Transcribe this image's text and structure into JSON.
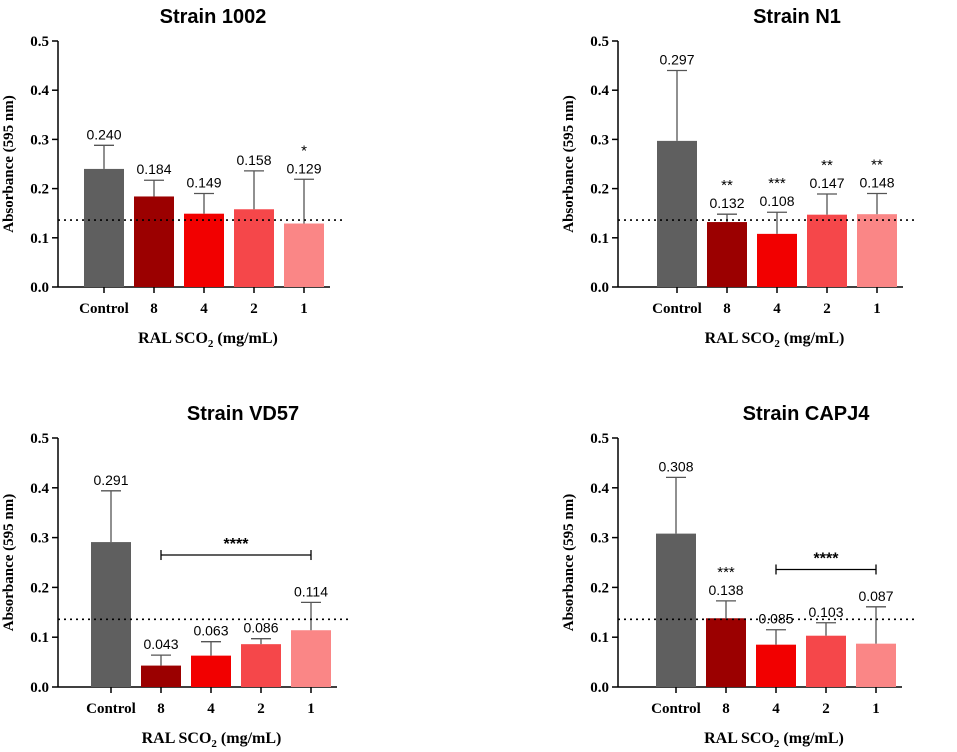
{
  "chart_data": [
    {
      "type": "bar",
      "title": "Strain 1002",
      "categories": [
        "Control",
        "8",
        "4",
        "2",
        "1"
      ],
      "values": [
        0.24,
        0.184,
        0.149,
        0.158,
        0.129
      ],
      "value_labels": [
        "0.240",
        "0.184",
        "0.149",
        "0.158",
        "0.129"
      ],
      "error_upper": [
        0.288,
        0.217,
        0.19,
        0.236,
        0.219
      ],
      "significance": [
        "",
        "",
        "",
        "",
        "*"
      ],
      "bracket": null,
      "colors": [
        "#5f5f5f",
        "#9b0000",
        "#f20000",
        "#f5474a",
        "#fa8686"
      ],
      "reference_line": 0.136,
      "ylabel": "Absorbance (595 nm)",
      "xlabel_main": "RAL SCO",
      "xlabel_sub": "2",
      "xlabel_unit": " (mg/mL)",
      "ylim": [
        0,
        0.5
      ],
      "yticks": [
        "0.0",
        "0.1",
        "0.2",
        "0.3",
        "0.4",
        "0.5"
      ]
    },
    {
      "type": "bar",
      "title": "Strain N1",
      "categories": [
        "Control",
        "8",
        "4",
        "2",
        "1"
      ],
      "values": [
        0.297,
        0.132,
        0.108,
        0.147,
        0.148
      ],
      "value_labels": [
        "0.297",
        "0.132",
        "0.108",
        "0.147",
        "0.148"
      ],
      "error_upper": [
        0.44,
        0.148,
        0.152,
        0.189,
        0.19
      ],
      "significance": [
        "",
        "**",
        "***",
        "**",
        "**"
      ],
      "bracket": null,
      "colors": [
        "#5f5f5f",
        "#9b0000",
        "#f20000",
        "#f5474a",
        "#fa8686"
      ],
      "reference_line": 0.136,
      "ylabel": "Absorbance (595 nm)",
      "xlabel_main": "RAL SCO",
      "xlabel_sub": "2",
      "xlabel_unit": " (mg/mL)",
      "ylim": [
        0,
        0.5
      ],
      "yticks": [
        "0.0",
        "0.1",
        "0.2",
        "0.3",
        "0.4",
        "0.5"
      ]
    },
    {
      "type": "bar",
      "title": "Strain VD57",
      "categories": [
        "Control",
        "8",
        "4",
        "2",
        "1"
      ],
      "values": [
        0.291,
        0.043,
        0.063,
        0.086,
        0.114
      ],
      "value_labels": [
        "0.291",
        "0.043",
        "0.063",
        "0.086",
        "0.114"
      ],
      "error_upper": [
        0.394,
        0.064,
        0.091,
        0.097,
        0.17
      ],
      "significance": [
        "",
        "",
        "",
        "",
        ""
      ],
      "bracket": {
        "from": 1,
        "to": 4,
        "y": 0.265,
        "label": "****"
      },
      "colors": [
        "#5f5f5f",
        "#9b0000",
        "#f20000",
        "#f5474a",
        "#fa8686"
      ],
      "reference_line": 0.136,
      "ylabel": "Absorbance (595 nm)",
      "xlabel_main": "RAL SCO",
      "xlabel_sub": "2",
      "xlabel_unit": " (mg/mL)",
      "ylim": [
        0,
        0.5
      ],
      "yticks": [
        "0.0",
        "0.1",
        "0.2",
        "0.3",
        "0.4",
        "0.5"
      ]
    },
    {
      "type": "bar",
      "title": "Strain CAPJ4",
      "categories": [
        "Control",
        "8",
        "4",
        "2",
        "1"
      ],
      "values": [
        0.308,
        0.138,
        0.085,
        0.103,
        0.087
      ],
      "value_labels": [
        "0.308",
        "0.138",
        "0.085",
        "0.103",
        "0.087"
      ],
      "error_upper": [
        0.421,
        0.173,
        0.115,
        0.129,
        0.161
      ],
      "significance": [
        "",
        "***",
        "",
        "",
        ""
      ],
      "bracket": {
        "from": 2,
        "to": 4,
        "y": 0.236,
        "label": "****"
      },
      "colors": [
        "#5f5f5f",
        "#9b0000",
        "#f20000",
        "#f5474a",
        "#fa8686"
      ],
      "reference_line": 0.136,
      "ylabel": "Absorbance (595 nm)",
      "xlabel_main": "RAL SCO",
      "xlabel_sub": "2",
      "xlabel_unit": " (mg/mL)",
      "ylim": [
        0,
        0.5
      ],
      "yticks": [
        "0.0",
        "0.1",
        "0.2",
        "0.3",
        "0.4",
        "0.5"
      ]
    }
  ]
}
